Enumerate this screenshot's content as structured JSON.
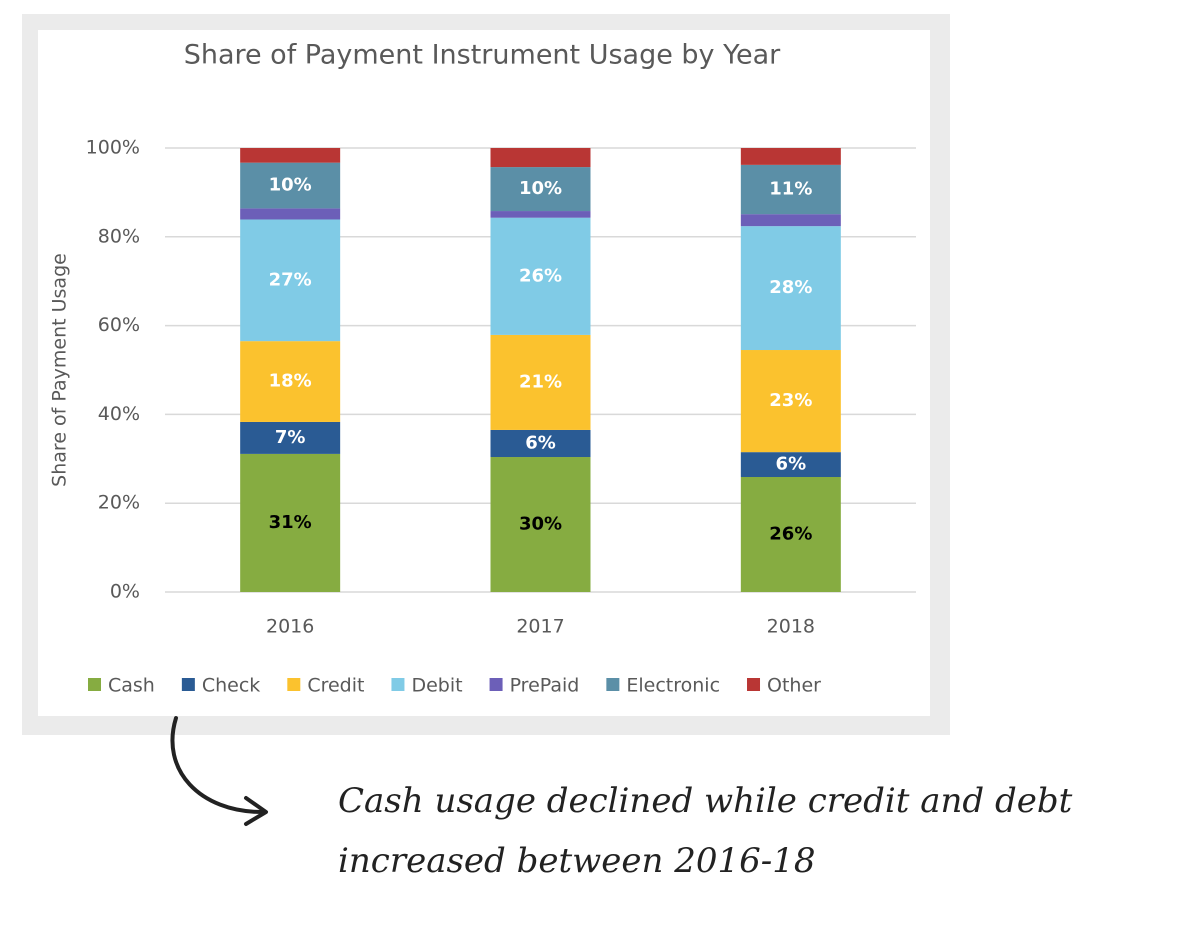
{
  "chart_data": {
    "type": "stacked_bar",
    "title": "Share of Payment Instrument Usage by Year",
    "y_label": "Share of Payment Usage",
    "categories": [
      "2016",
      "2017",
      "2018"
    ],
    "series": [
      {
        "name": "Cash",
        "color": "#86ac41",
        "label_color": "#000000",
        "values": [
          31.1,
          30.4,
          25.9
        ],
        "value_labels": [
          "31%",
          "30%",
          "26%"
        ]
      },
      {
        "name": "Check",
        "color": "#2a5b94",
        "label_color": "#ffffff",
        "values": [
          7.2,
          6.1,
          5.6
        ],
        "value_labels": [
          "7%",
          "6%",
          "6%"
        ]
      },
      {
        "name": "Credit",
        "color": "#fbc22e",
        "label_color": "#ffffff",
        "values": [
          18.2,
          21.4,
          23.0
        ],
        "value_labels": [
          "18%",
          "21%",
          "23%"
        ]
      },
      {
        "name": "Debit",
        "color": "#80cbe6",
        "label_color": "#ffffff",
        "values": [
          27.4,
          26.4,
          27.9
        ],
        "value_labels": [
          "27%",
          "26%",
          "28%"
        ]
      },
      {
        "name": "PrePaid",
        "color": "#6c5fb8",
        "values": [
          2.5,
          1.5,
          2.7
        ]
      },
      {
        "name": "Electronic",
        "color": "#5b8fa7",
        "label_color": "#ffffff",
        "values": [
          10.3,
          9.9,
          11.1
        ],
        "value_labels": [
          "10%",
          "10%",
          "11%"
        ]
      },
      {
        "name": "Other",
        "color": "#b93634",
        "values": [
          3.3,
          4.3,
          3.8
        ]
      }
    ],
    "ylim": [
      0,
      100
    ],
    "yticks": [
      {
        "value": 0,
        "label": "0%"
      },
      {
        "value": 20,
        "label": "20%"
      },
      {
        "value": 40,
        "label": "40%"
      },
      {
        "value": 60,
        "label": "60%"
      },
      {
        "value": 80,
        "label": "80%"
      },
      {
        "value": 100,
        "label": "100%"
      }
    ],
    "grid": true,
    "legend": "bottom"
  },
  "annotation": [
    "Cash usage declined while credit and debt",
    "increased between 2016-18"
  ]
}
